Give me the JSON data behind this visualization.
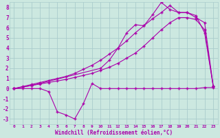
{
  "background_color": "#cce8e0",
  "grid_color": "#aacccc",
  "line_color": "#aa00aa",
  "xlabel": "Windchill (Refroidissement éolien,°C)",
  "xlim": [
    -0.5,
    23.5
  ],
  "ylim": [
    -3.5,
    8.5
  ],
  "xtick_labels": [
    "0",
    "1",
    "2",
    "3",
    "4",
    "5",
    "6",
    "7",
    "8",
    "9",
    "10",
    "11",
    "12",
    "13",
    "14",
    "15",
    "16",
    "17",
    "18",
    "19",
    "20",
    "21",
    "22",
    "23"
  ],
  "ytick_labels": [
    "-3",
    "-2",
    "-1",
    "0",
    "1",
    "2",
    "3",
    "4",
    "5",
    "6",
    "7",
    "8"
  ],
  "line_flat_x": [
    0,
    1,
    2,
    3,
    4,
    5,
    6,
    7,
    8,
    9,
    10,
    11,
    12,
    13,
    14,
    15,
    16,
    17,
    18,
    19,
    20,
    21,
    22,
    23
  ],
  "line_flat_y": [
    0,
    0,
    0,
    0,
    -0.3,
    -2.3,
    -2.6,
    -3.0,
    -1.5,
    0.5,
    0,
    0,
    0,
    0,
    0,
    0,
    0,
    0,
    0,
    0,
    0,
    0,
    0.1,
    0.1
  ],
  "line_low_x": [
    0,
    1,
    2,
    3,
    4,
    5,
    6,
    7,
    8,
    9,
    10,
    11,
    12,
    13,
    14,
    15,
    16,
    17,
    18,
    19,
    20,
    21,
    22,
    23
  ],
  "line_low_y": [
    0.0,
    0.15,
    0.3,
    0.45,
    0.6,
    0.75,
    0.9,
    1.1,
    1.3,
    1.5,
    1.8,
    2.1,
    2.5,
    3.0,
    3.5,
    4.2,
    5.0,
    5.8,
    6.5,
    7.0,
    7.0,
    6.8,
    5.8,
    0.2
  ],
  "line_mid_x": [
    0,
    1,
    2,
    3,
    4,
    5,
    6,
    7,
    8,
    9,
    10,
    11,
    12,
    13,
    14,
    15,
    16,
    17,
    18,
    19,
    20,
    21,
    22,
    23
  ],
  "line_mid_y": [
    0.0,
    0.2,
    0.4,
    0.6,
    0.8,
    1.0,
    1.2,
    1.5,
    1.9,
    2.3,
    2.8,
    3.4,
    4.0,
    4.7,
    5.5,
    6.2,
    6.9,
    7.5,
    8.2,
    7.5,
    7.5,
    7.0,
    6.5,
    0.2
  ],
  "line_high_x": [
    0,
    2,
    10,
    11,
    12,
    13,
    14,
    15,
    16,
    17,
    18,
    19,
    20,
    21,
    22,
    23
  ],
  "line_high_y": [
    0.0,
    0.3,
    2.0,
    2.8,
    4.0,
    5.5,
    6.3,
    6.2,
    7.3,
    8.5,
    7.8,
    7.5,
    7.5,
    7.2,
    5.5,
    0.2
  ]
}
